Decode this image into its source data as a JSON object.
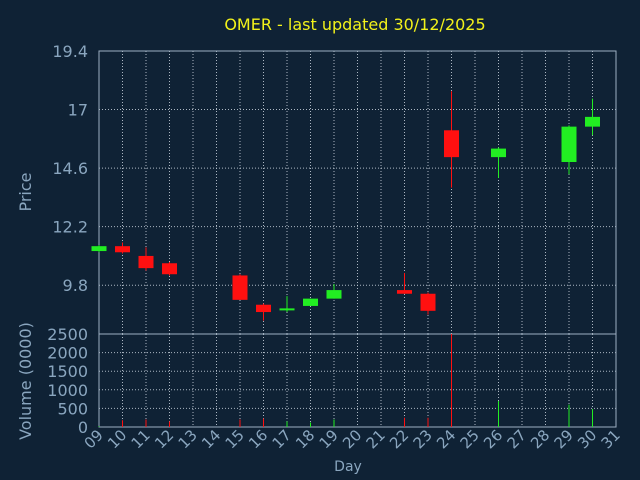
{
  "chart_data": {
    "type": "candlestick",
    "title": "OMER - last updated 30/12/2025",
    "xlabel": "Day",
    "ylabel_price": "Price",
    "ylabel_volume": "Volume (0000)",
    "x_ticks": [
      "09",
      "10",
      "11",
      "12",
      "13",
      "14",
      "15",
      "16",
      "17",
      "18",
      "19",
      "20",
      "21",
      "22",
      "23",
      "24",
      "25",
      "26",
      "27",
      "28",
      "29",
      "30",
      "31"
    ],
    "price_ticks": [
      "19.4",
      "17",
      "14.6",
      "12.2",
      "9.8"
    ],
    "price_tick_values": [
      19.4,
      17,
      14.6,
      12.2,
      9.8
    ],
    "volume_ticks": [
      "2500",
      "2000",
      "1500",
      "1000",
      "500",
      "0"
    ],
    "volume_tick_values": [
      2500,
      2000,
      1500,
      1000,
      500,
      0
    ],
    "price_range": [
      7.8,
      19.4
    ],
    "volume_range": [
      0,
      2500
    ],
    "x_range": [
      9,
      31
    ],
    "grid": true,
    "colors": {
      "up": "#22ee22",
      "down": "#ff1010",
      "title": "#f2f21a",
      "axis_text": "#8aa6bf",
      "background": "#0f2235",
      "grid": "#c8d2dc"
    },
    "candles": [
      {
        "day": 9,
        "open": 11.2,
        "close": 11.4,
        "high": 11.45,
        "low": 11.15,
        "volume": 20
      },
      {
        "day": 10,
        "open": 11.4,
        "close": 11.15,
        "high": 11.55,
        "low": 11.1,
        "volume": 180
      },
      {
        "day": 11,
        "open": 11.0,
        "close": 10.5,
        "high": 11.35,
        "low": 10.4,
        "volume": 200
      },
      {
        "day": 12,
        "open": 10.7,
        "close": 10.25,
        "high": 10.75,
        "low": 10.2,
        "volume": 150
      },
      {
        "day": 15,
        "open": 10.2,
        "close": 9.2,
        "high": 10.25,
        "low": 9.2,
        "volume": 200
      },
      {
        "day": 16,
        "open": 9.0,
        "close": 8.7,
        "high": 9.05,
        "low": 8.35,
        "volume": 230
      },
      {
        "day": 17,
        "open": 8.8,
        "close": 8.85,
        "high": 9.35,
        "low": 8.7,
        "volume": 150
      },
      {
        "day": 18,
        "open": 8.95,
        "close": 9.25,
        "high": 9.25,
        "low": 8.95,
        "volume": 120
      },
      {
        "day": 19,
        "open": 9.25,
        "close": 9.6,
        "high": 9.85,
        "low": 9.25,
        "volume": 200
      },
      {
        "day": 22,
        "open": 9.6,
        "close": 9.45,
        "high": 10.3,
        "low": 9.45,
        "volume": 250
      },
      {
        "day": 23,
        "open": 9.45,
        "close": 8.75,
        "high": 9.5,
        "low": 8.6,
        "volume": 250
      },
      {
        "day": 24,
        "open": 16.15,
        "close": 15.05,
        "high": 17.75,
        "low": 13.8,
        "volume": 2500
      },
      {
        "day": 26,
        "open": 15.05,
        "close": 15.4,
        "high": 15.45,
        "low": 14.2,
        "volume": 700
      },
      {
        "day": 29,
        "open": 14.85,
        "close": 16.3,
        "high": 16.35,
        "low": 14.35,
        "volume": 600
      },
      {
        "day": 30,
        "open": 16.3,
        "close": 16.7,
        "high": 17.45,
        "low": 15.95,
        "volume": 480
      }
    ]
  }
}
